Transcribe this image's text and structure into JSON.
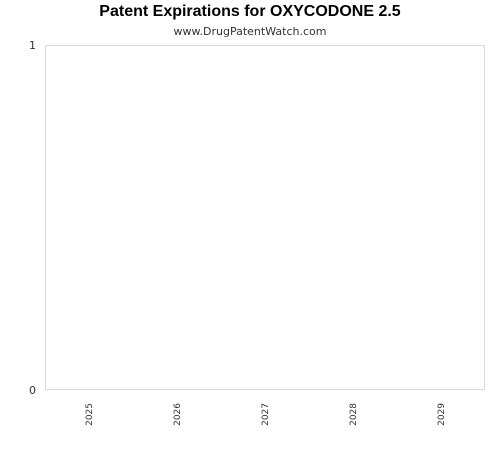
{
  "chart_data": {
    "type": "bar",
    "title": "Patent Expirations for OXYCODONE 2.5",
    "subtitle": "www.DrugPatentWatch.com",
    "categories": [
      "2025",
      "2026",
      "2027",
      "2028",
      "2029"
    ],
    "values": [
      0,
      0,
      0,
      0,
      0
    ],
    "xlabel": "",
    "ylabel": "",
    "ylim": [
      0,
      1
    ],
    "yticks": [
      "0",
      "1"
    ],
    "grid": false,
    "legend": "none",
    "colors": {
      "plot_border": "#d9d9d9",
      "text": "#333333",
      "bar": "#4a7ebb"
    }
  }
}
